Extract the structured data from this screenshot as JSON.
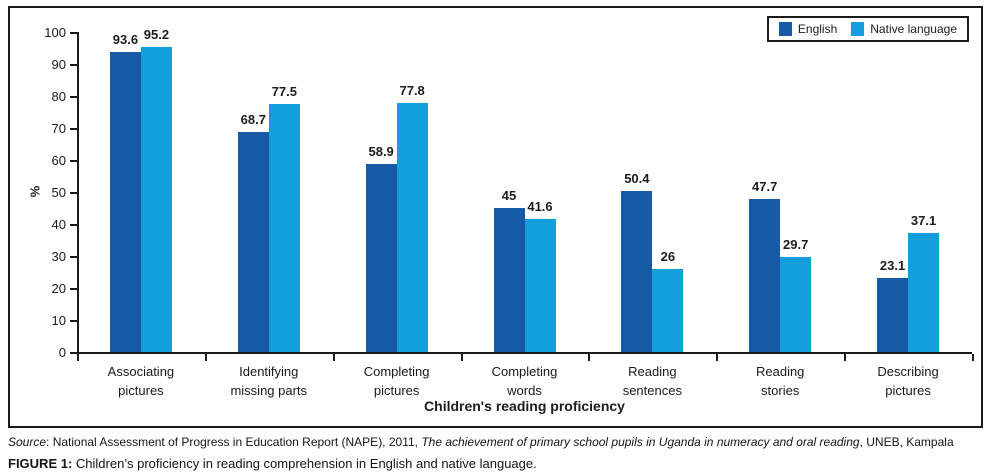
{
  "chart_data": {
    "type": "bar",
    "title": "",
    "xlabel": "Children's reading proficiency",
    "ylabel": "%",
    "ylim": [
      0,
      100
    ],
    "ytick_step": 10,
    "grid": false,
    "legend_position": "top-right",
    "categories": [
      "Associating\npictures",
      "Identifying\nmissing parts",
      "Completing\npictures",
      "Completing\nwords",
      "Reading\nsentences",
      "Reading\nstories",
      "Describing\npictures"
    ],
    "series": [
      {
        "name": "English",
        "color": "#1659a5",
        "values": [
          93.6,
          68.7,
          58.9,
          45,
          50.4,
          47.7,
          23.1
        ]
      },
      {
        "name": "Native language",
        "color": "#149fdc",
        "values": [
          95.2,
          77.5,
          77.8,
          41.6,
          26,
          29.7,
          37.1
        ]
      }
    ]
  },
  "figure": {
    "source": {
      "label": "Source",
      "text_after_label": ": National Assessment of Progress in Education Report (NAPE), 2011, ",
      "italic_title": "The achievement of primary school pupils in Uganda in numeracy and oral reading",
      "text_end": ", UNEB, Kampala"
    },
    "caption": {
      "label": "FIGURE 1:",
      "text": " Children’s proficiency in reading comprehension in English and native language."
    }
  }
}
